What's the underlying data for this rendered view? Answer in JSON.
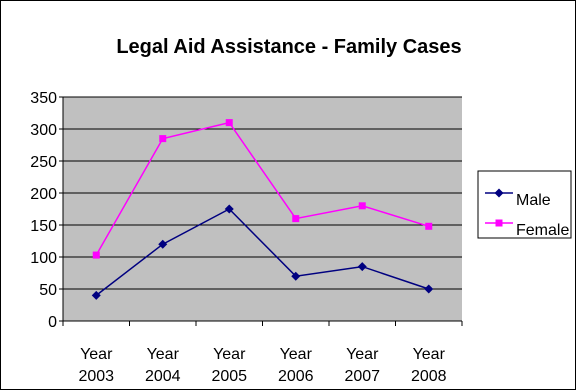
{
  "chart_data": {
    "type": "line",
    "title": "Legal Aid Assistance - Family Cases",
    "categories": [
      "Year 2003",
      "Year 2004",
      "Year 2005",
      "Year 2006",
      "Year 2007",
      "Year 2008"
    ],
    "category_lines": [
      [
        "Year",
        "2003"
      ],
      [
        "Year",
        "2004"
      ],
      [
        "Year",
        "2005"
      ],
      [
        "Year",
        "2006"
      ],
      [
        "Year",
        "2007"
      ],
      [
        "Year",
        "2008"
      ]
    ],
    "yticks": [
      "0",
      "50",
      "100",
      "150",
      "200",
      "250",
      "300",
      "350"
    ],
    "ylim": [
      0,
      350
    ],
    "grid": true,
    "plot_background": "#c0c0c0",
    "legend_position": "right",
    "series": [
      {
        "name": "Male",
        "color": "#000080",
        "marker": "diamond",
        "values": [
          40,
          120,
          175,
          70,
          85,
          50
        ]
      },
      {
        "name": "Female",
        "color": "#ff00ff",
        "marker": "square",
        "values": [
          103,
          285,
          310,
          160,
          180,
          148
        ]
      }
    ]
  }
}
